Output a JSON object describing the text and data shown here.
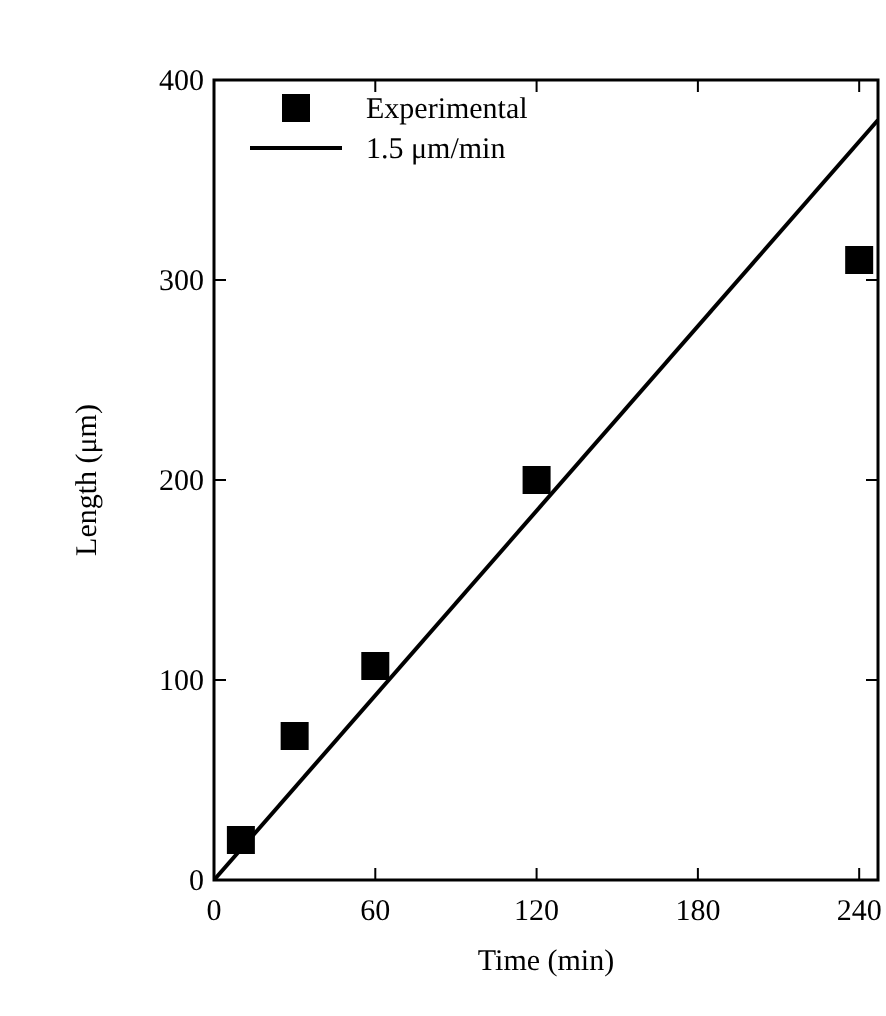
{
  "chart_data": {
    "type": "scatter",
    "xlabel": "Time (min)",
    "ylabel": "Length (μm)",
    "xlim": [
      0,
      247
    ],
    "ylim": [
      0,
      400
    ],
    "xticks": [
      0,
      60,
      120,
      180,
      240
    ],
    "yticks": [
      0,
      100,
      200,
      300,
      400
    ],
    "grid": false,
    "legend": "top left",
    "series": [
      {
        "name": "Experimental",
        "marker": "square",
        "color": "#000000",
        "x": [
          10,
          30,
          60,
          120,
          240
        ],
        "values": [
          20,
          72,
          107,
          200,
          310
        ]
      },
      {
        "name": "1.5 μm/min",
        "type": "line",
        "marker": "none",
        "line_style": "solid",
        "color": "#000000",
        "x": [
          0,
          247
        ],
        "values": [
          0,
          380
        ]
      }
    ]
  }
}
